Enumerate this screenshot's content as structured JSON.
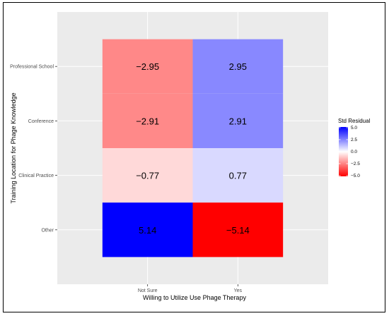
{
  "chart_data": {
    "type": "heatmap",
    "xlabel": "Willing to Utilize Use Phage Therapy",
    "ylabel": "Training Location for Phage Knowledge",
    "x_categories": [
      "Not Sure",
      "Yes"
    ],
    "y_categories": [
      "Professional School",
      "Conference",
      "Clinical Practice",
      "Other"
    ],
    "values": [
      [
        -2.95,
        2.95
      ],
      [
        -2.91,
        2.91
      ],
      [
        -0.77,
        0.77
      ],
      [
        5.14,
        -5.14
      ]
    ],
    "value_labels": [
      [
        "−2.95",
        "2.95"
      ],
      [
        "−2.91",
        "2.91"
      ],
      [
        "−0.77",
        "0.77"
      ],
      [
        "5.14",
        "−5.14"
      ]
    ],
    "legend": {
      "title": "Std Residual",
      "ticks": [
        "5.0",
        "2.5",
        "0.0",
        "−2.5",
        "−5.0"
      ],
      "tick_values": [
        5.0,
        2.5,
        0.0,
        -2.5,
        -5.0
      ],
      "range": [
        -5.14,
        5.14
      ],
      "low_color": "#ff0000",
      "mid_color": "#ffffff",
      "high_color": "#0000ff",
      "placement": "right"
    },
    "colors": {
      "panel_background": "#ebebeb",
      "grid": "#ffffff"
    }
  }
}
